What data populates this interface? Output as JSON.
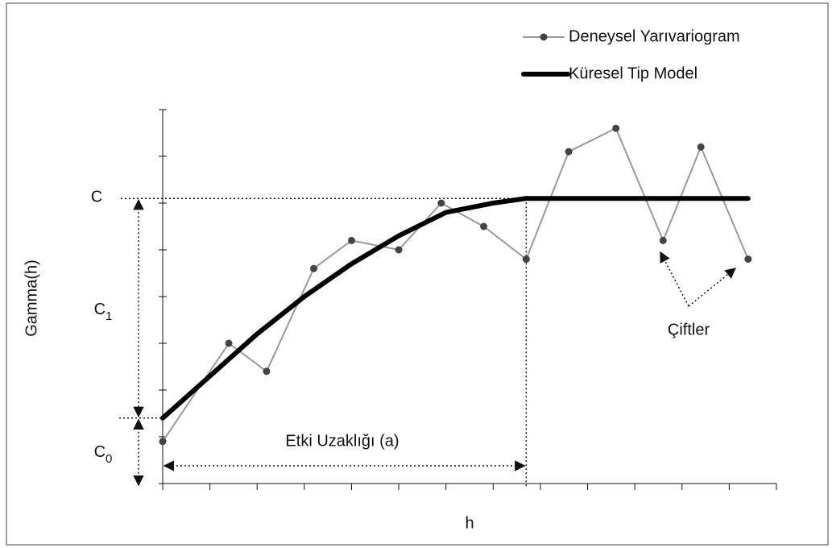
{
  "chart_data": {
    "type": "line",
    "xlabel": "h",
    "ylabel": "Gamma(h)",
    "xlim": [
      0,
      13
    ],
    "ylim": [
      0,
      8
    ],
    "xticks": [
      0,
      1,
      2,
      3,
      4,
      5,
      6,
      7,
      8,
      9,
      10,
      11,
      12,
      13
    ],
    "yticks": [
      0,
      1,
      2,
      3,
      4,
      5,
      6,
      7,
      8
    ],
    "legend": "top-right",
    "series": [
      {
        "name": "Deneysel Yarıvariogram",
        "color": "#999999",
        "marker_color": "#444444",
        "x": [
          0,
          1.4,
          2.2,
          3.2,
          4.0,
          5.0,
          5.9,
          6.8,
          7.7,
          8.6,
          9.6,
          10.6,
          11.4,
          12.4
        ],
        "values": [
          0.9,
          3.0,
          2.4,
          4.6,
          5.2,
          5.0,
          6.0,
          5.5,
          4.8,
          7.1,
          7.6,
          5.2,
          7.2,
          4.8
        ]
      },
      {
        "name": "Küresel Tip Model",
        "color": "#000000",
        "x": [
          0,
          1,
          2,
          3,
          4,
          5,
          6,
          7,
          7.7,
          12.4
        ],
        "values": [
          1.4,
          2.3,
          3.2,
          4.0,
          4.7,
          5.3,
          5.8,
          6.0,
          6.1,
          6.1
        ]
      }
    ],
    "annotations": {
      "sill": "C",
      "partial_sill": {
        "text": "C",
        "sub": "1"
      },
      "nugget": {
        "text": "C",
        "sub": "0"
      },
      "range": "Etki Uzaklığı (a)",
      "pairs": "Çiftler"
    }
  }
}
